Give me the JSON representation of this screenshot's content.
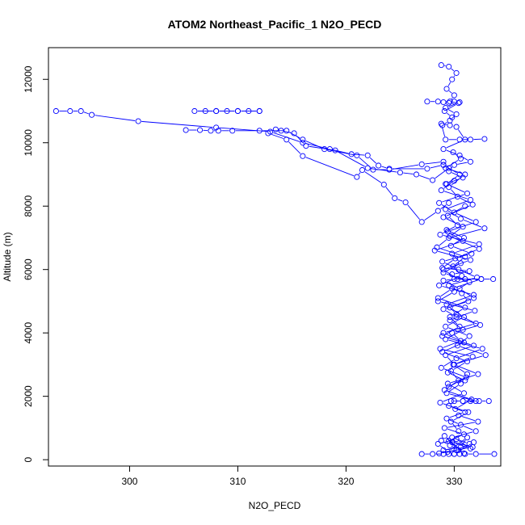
{
  "chart_data": {
    "type": "line",
    "title": "ATOM2 Northeast_Pacific_1 N2O_PECD",
    "xlabel": "N2O_PECD",
    "ylabel": "Altitude (m)",
    "xlim": [
      292.5,
      334.3
    ],
    "ylim": [
      -200,
      13000
    ],
    "x_ticks": [
      300,
      310,
      320,
      330
    ],
    "y_ticks": [
      0,
      2000,
      4000,
      6000,
      8000,
      10000,
      12000
    ],
    "grid": false,
    "series_color": "#0000ff",
    "marker": "open-circle",
    "series": [
      {
        "x": [
          312.0,
          311.0,
          310.0,
          309.0,
          308.0,
          307.0,
          306.0,
          308.0,
          310.0,
          312.0
        ],
        "y": [
          11000,
          11000,
          11000,
          11000,
          11000,
          11000,
          11000,
          11000,
          11000,
          11000
        ]
      },
      {
        "x": [
          293.2,
          294.5,
          295.5,
          296.5,
          300.8,
          308.0,
          313.0,
          316.0,
          318.5,
          320.5,
          322.0,
          323.0,
          324.0,
          327.5,
          329.0
        ],
        "y": [
          11000,
          11000,
          11000,
          10880,
          10680,
          10480,
          10350,
          10000,
          9800,
          9640,
          9600,
          9280,
          9180,
          9180,
          9300
        ]
      },
      {
        "x": [
          305.2,
          306.5,
          307.5,
          308.2,
          309.5,
          312.0,
          314.5,
          316.0,
          318.0,
          321.0,
          322.5,
          324.0,
          327.0,
          329.0
        ],
        "y": [
          10400,
          10400,
          10380,
          10380,
          10380,
          10380,
          10380,
          10100,
          9800,
          9600,
          9150,
          9150,
          9320,
          9400
        ]
      },
      {
        "x": [
          313.5,
          314.0,
          315.2,
          316.3,
          319.0,
          322.0,
          325.0,
          326.5,
          328.0,
          329.5
        ],
        "y": [
          10420,
          10380,
          10300,
          9900,
          9760,
          9200,
          9060,
          9000,
          8820,
          9200
        ]
      },
      {
        "x": [
          312.8,
          314.5,
          316.0,
          321.0,
          321.5,
          323.5,
          324.5,
          325.5,
          327.0,
          328.5,
          329.5
        ],
        "y": [
          10300,
          10100,
          9580,
          8920,
          9140,
          8680,
          8250,
          8120,
          7500,
          7850,
          8100
        ]
      },
      {
        "x": [
          332.8,
          331.5,
          330.5,
          329.2,
          328.8,
          329.6,
          330.2,
          331.0,
          329.0,
          330.5,
          331.5,
          330.0,
          329.5,
          330.8,
          329.2
        ],
        "y": [
          10120,
          10100,
          10100,
          10100,
          10600,
          10550,
          10500,
          10100,
          9800,
          9600,
          9400,
          9300,
          9100,
          8900,
          8700
        ]
      },
      {
        "x": [
          328.8,
          329.5,
          330.2,
          329.8,
          329.3,
          330.0,
          329.6,
          330.4,
          329.1,
          329.8
        ],
        "y": [
          12450,
          12400,
          12200,
          12000,
          11700,
          11500,
          11300,
          11250,
          11000,
          10800
        ]
      },
      {
        "x": [
          327.5,
          328.5,
          329.0,
          329.5,
          330.0,
          330.5,
          329.2,
          330.2,
          329.6,
          328.9
        ],
        "y": [
          11300,
          11300,
          11280,
          11260,
          11300,
          11280,
          11100,
          10900,
          10700,
          10550
        ]
      },
      {
        "x": [
          329.0,
          330.5,
          329.3,
          331.2,
          328.6,
          330.0,
          332.0,
          329.4,
          330.8,
          328.2,
          331.5,
          329.0,
          330.3,
          332.5,
          329.8,
          328.5,
          331.0,
          329.6,
          330.5,
          328.9,
          331.8,
          329.2,
          330.0,
          332.2,
          329.4,
          330.9,
          328.7,
          331.3,
          329.7,
          330.4
        ],
        "y": [
          9300,
          9000,
          8700,
          8400,
          8100,
          7800,
          7500,
          7200,
          6900,
          6600,
          6300,
          6000,
          5700,
          5700,
          5400,
          5100,
          4800,
          4500,
          4200,
          3900,
          3600,
          3300,
          3000,
          2700,
          2400,
          2100,
          1800,
          1500,
          1200,
          900
        ]
      },
      {
        "x": [
          330.0,
          328.8,
          331.5,
          329.2,
          330.6,
          332.8,
          329.5,
          328.4,
          331.0,
          329.9,
          330.7,
          328.6,
          331.8,
          329.3,
          330.2,
          332.0,
          329.0,
          330.9,
          328.9,
          331.2,
          329.7,
          330.4,
          329.1,
          331.6,
          330.1
        ],
        "y": [
          8800,
          8500,
          8200,
          7900,
          7600,
          7300,
          7000,
          6700,
          6400,
          6100,
          5800,
          5500,
          5200,
          4900,
          4600,
          4300,
          4000,
          3700,
          3400,
          3100,
          2800,
          2500,
          2200,
          1900,
          1600
        ]
      },
      {
        "x": [
          331.0,
          329.4,
          330.3,
          328.7,
          332.3,
          329.8,
          330.6,
          329.0,
          331.4,
          330.0,
          328.5,
          331.9,
          329.6,
          330.8,
          329.2,
          332.6,
          330.2,
          328.8,
          331.1,
          329.5
        ],
        "y": [
          8000,
          7700,
          7400,
          7100,
          6800,
          6500,
          6200,
          5900,
          5600,
          5300,
          5000,
          4700,
          4400,
          4100,
          3800,
          3500,
          3200,
          2900,
          2600,
          2300
        ]
      },
      {
        "x": [
          329.3,
          330.9,
          329.7,
          331.6,
          328.9,
          330.4,
          332.1,
          329.5,
          330.7,
          331.3,
          329.0,
          330.2,
          332.4,
          329.8,
          330.6,
          328.7,
          331.7,
          330.0,
          329.4,
          331.0
        ],
        "y": [
          7250,
          7000,
          6750,
          6500,
          6250,
          6000,
          5750,
          5500,
          5250,
          5000,
          4750,
          4500,
          4250,
          4000,
          3750,
          3500,
          3250,
          3000,
          2750,
          2500
        ]
      },
      {
        "x": [
          333.6,
          332.5,
          331.0,
          330.0,
          329.0,
          330.5,
          331.8,
          329.6,
          330.9,
          329.2,
          331.4,
          330.3,
          332.9,
          329.9,
          331.2,
          330.6,
          329.3,
          332.0,
          330.8,
          329.7
        ],
        "y": [
          5700,
          5700,
          5700,
          5700,
          5650,
          5400,
          5100,
          4800,
          4500,
          4200,
          3900,
          3600,
          3300,
          3000,
          2700,
          2400,
          2100,
          1850,
          1850,
          1850
        ]
      },
      {
        "x": [
          333.2,
          332.3,
          331.5,
          330.8,
          330.0,
          329.5,
          331.0,
          329.3,
          330.6,
          332.0,
          329.8,
          331.4,
          330.2,
          328.6,
          331.7,
          329.5,
          330.9,
          329.1,
          332.2,
          330.4
        ],
        "y": [
          1850,
          1850,
          1850,
          1850,
          1850,
          1700,
          1500,
          1300,
          1100,
          900,
          700,
          500,
          300,
          200,
          400,
          600,
          800,
          1000,
          1200,
          1400
        ]
      },
      {
        "x": [
          327.0,
          328.0,
          329.0,
          329.5,
          330.0,
          330.5,
          331.0,
          332.0,
          333.7
        ],
        "y": [
          180,
          180,
          180,
          180,
          180,
          180,
          180,
          180,
          180
        ]
      },
      {
        "x": [
          328.8,
          329.6,
          330.4,
          329.1,
          330.9,
          329.8,
          331.5,
          330.2,
          328.5,
          329.4,
          331.2,
          330.6,
          329.0,
          330.0,
          331.8
        ],
        "y": [
          600,
          450,
          300,
          750,
          200,
          550,
          350,
          650,
          500,
          250,
          700,
          400,
          300,
          180,
          550
        ]
      },
      {
        "x": [
          329.9,
          330.6,
          329.2,
          331.0,
          329.5,
          330.3,
          331.7,
          329.0,
          330.8,
          329.6,
          332.3,
          330.1,
          328.9,
          331.4,
          329.8
        ],
        "y": [
          9700,
          9500,
          9200,
          9000,
          8600,
          8300,
          8050,
          7650,
          7350,
          7050,
          6650,
          6350,
          6050,
          5950,
          5850
        ]
      }
    ]
  }
}
